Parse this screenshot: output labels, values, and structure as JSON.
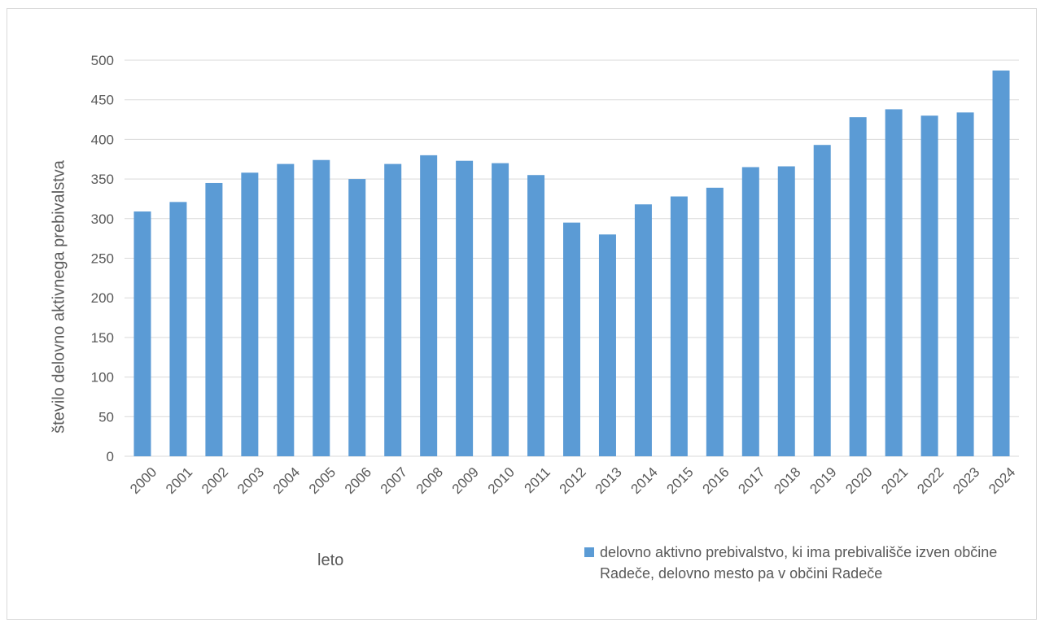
{
  "colors": {
    "bar": "#5b9bd5",
    "grid": "#d9d9d9",
    "text": "#595959"
  },
  "chart_data": {
    "type": "bar",
    "categories": [
      "2000",
      "2001",
      "2002",
      "2003",
      "2004",
      "2005",
      "2006",
      "2007",
      "2008",
      "2009",
      "2010",
      "2011",
      "2012",
      "2013",
      "2014",
      "2015",
      "2016",
      "2017",
      "2018",
      "2019",
      "2020",
      "2021",
      "2022",
      "2023",
      "2024"
    ],
    "series": [
      {
        "name": "delovno aktivno prebivalstvo, ki ima prebivališče izven občine Radeče, delovno mesto pa v občini Radeče",
        "values": [
          309,
          321,
          345,
          358,
          369,
          374,
          350,
          369,
          380,
          373,
          370,
          355,
          295,
          280,
          318,
          328,
          339,
          365,
          366,
          393,
          428,
          438,
          430,
          434,
          487
        ]
      }
    ],
    "yticks": [
      0,
      50,
      100,
      150,
      200,
      250,
      300,
      350,
      400,
      450,
      500
    ],
    "ylim": [
      0,
      500
    ],
    "xlabel": "leto",
    "ylabel": "število delovno aktivnega prebivalstva",
    "grid": true,
    "legend_position": "bottom-right"
  }
}
